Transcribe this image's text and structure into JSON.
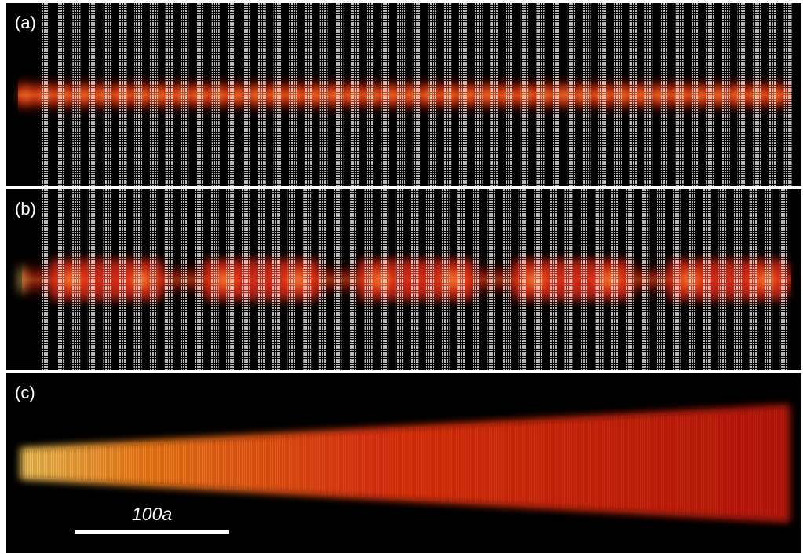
{
  "panels": [
    {
      "label": "(a)"
    },
    {
      "label": "(b)"
    },
    {
      "label": "(c)"
    }
  ],
  "scale_bar": {
    "label": "100a"
  },
  "colors": {
    "background": "#000000",
    "separator": "#ffffff",
    "stripe": "#d8d8d8",
    "field_core": "#ffd060",
    "field_mid": "#e02a10",
    "field_edge": "#3a0500"
  }
}
